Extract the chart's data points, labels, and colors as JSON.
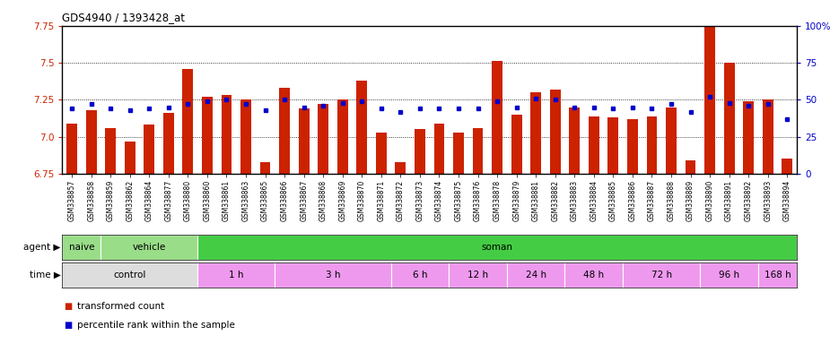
{
  "title": "GDS4940 / 1393428_at",
  "samples": [
    "GSM338857",
    "GSM338858",
    "GSM338859",
    "GSM338862",
    "GSM338864",
    "GSM338877",
    "GSM338880",
    "GSM338860",
    "GSM338861",
    "GSM338863",
    "GSM338865",
    "GSM338866",
    "GSM338867",
    "GSM338868",
    "GSM338869",
    "GSM338870",
    "GSM338871",
    "GSM338872",
    "GSM338873",
    "GSM338874",
    "GSM338875",
    "GSM338876",
    "GSM338878",
    "GSM338879",
    "GSM338881",
    "GSM338882",
    "GSM338883",
    "GSM338884",
    "GSM338885",
    "GSM338886",
    "GSM338887",
    "GSM338888",
    "GSM338889",
    "GSM338890",
    "GSM338891",
    "GSM338892",
    "GSM338893",
    "GSM338894"
  ],
  "bar_values": [
    7.09,
    7.18,
    7.06,
    6.97,
    7.08,
    7.16,
    7.46,
    7.27,
    7.28,
    7.25,
    6.83,
    7.33,
    7.19,
    7.22,
    7.25,
    7.38,
    7.03,
    6.83,
    7.05,
    7.09,
    7.03,
    7.06,
    7.51,
    7.15,
    7.3,
    7.32,
    7.2,
    7.14,
    7.13,
    7.12,
    7.14,
    7.2,
    6.84,
    7.86,
    7.5,
    7.24,
    7.25,
    6.85
  ],
  "percentile_values": [
    44,
    47,
    44,
    43,
    44,
    45,
    47,
    49,
    50,
    47,
    43,
    50,
    45,
    46,
    48,
    49,
    44,
    42,
    44,
    44,
    44,
    44,
    49,
    45,
    51,
    50,
    45,
    45,
    44,
    45,
    44,
    47,
    42,
    52,
    48,
    46,
    47,
    37
  ],
  "ylim_left": [
    6.75,
    7.75
  ],
  "ylim_right": [
    0,
    100
  ],
  "bar_color": "#cc2200",
  "dot_color": "#0000cc",
  "gridline_values": [
    7.0,
    7.25,
    7.5
  ],
  "yticks_left": [
    6.75,
    7.0,
    7.25,
    7.5,
    7.75
  ],
  "yticks_right": [
    0,
    25,
    50,
    75,
    100
  ],
  "agent_spans": [
    {
      "label": "naive",
      "start": 0,
      "end": 1,
      "color": "#99dd88"
    },
    {
      "label": "vehicle",
      "start": 2,
      "end": 6,
      "color": "#99dd88"
    },
    {
      "label": "soman",
      "start": 7,
      "end": 37,
      "color": "#44cc44"
    }
  ],
  "time_spans": [
    {
      "label": "control",
      "start": 0,
      "end": 6,
      "color": "#dddddd"
    },
    {
      "label": "1 h",
      "start": 7,
      "end": 10,
      "color": "#ee99ee"
    },
    {
      "label": "3 h",
      "start": 11,
      "end": 16,
      "color": "#ee99ee"
    },
    {
      "label": "6 h",
      "start": 17,
      "end": 19,
      "color": "#ee99ee"
    },
    {
      "label": "12 h",
      "start": 20,
      "end": 22,
      "color": "#ee99ee"
    },
    {
      "label": "24 h",
      "start": 23,
      "end": 25,
      "color": "#ee99ee"
    },
    {
      "label": "48 h",
      "start": 26,
      "end": 28,
      "color": "#ee99ee"
    },
    {
      "label": "72 h",
      "start": 29,
      "end": 32,
      "color": "#ee99ee"
    },
    {
      "label": "96 h",
      "start": 33,
      "end": 35,
      "color": "#ee99ee"
    },
    {
      "label": "168 h",
      "start": 36,
      "end": 37,
      "color": "#ee99ee"
    }
  ],
  "legend_items": [
    {
      "label": "transformed count",
      "color": "#cc2200"
    },
    {
      "label": "percentile rank within the sample",
      "color": "#0000cc"
    }
  ]
}
